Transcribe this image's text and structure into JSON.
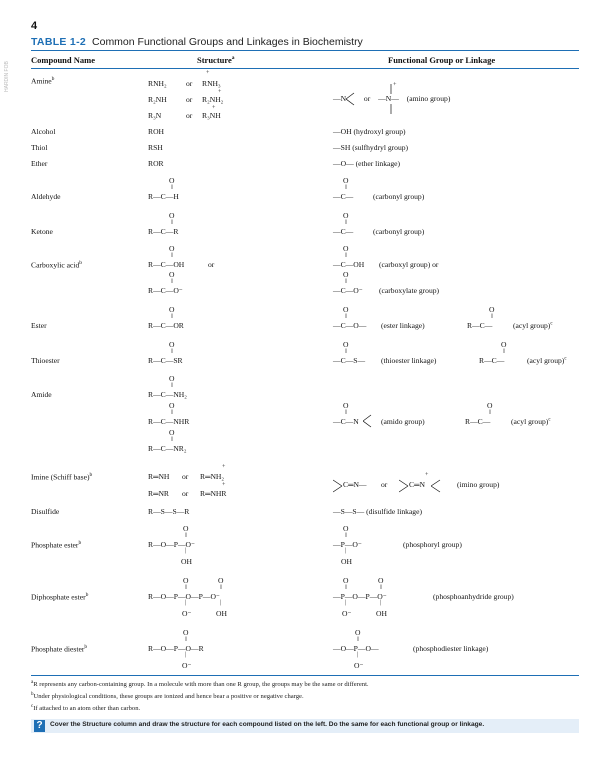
{
  "page_number": "4",
  "side_label": "HARDIN FOB",
  "table": {
    "label": "TABLE 1-2",
    "title": "Common Functional Groups and Linkages in Biochemistry",
    "headers": {
      "compound": "Compound Name",
      "structure": "Structure",
      "structure_sup": "a",
      "functional": "Functional Group or Linkage"
    }
  },
  "rows": {
    "amine": {
      "name": "Amine",
      "sup": "b",
      "s": [
        "RNH₂",
        "or",
        "RNH₃",
        "R₂NH",
        "or",
        "R₂NH₂",
        "R₃N",
        "or",
        "R₃NH",
        "+",
        "+",
        "+"
      ],
      "f": [
        "—N",
        "or",
        "—N—",
        "(amino group)",
        "+"
      ]
    },
    "alcohol": {
      "name": "Alcohol",
      "s": "ROH",
      "f": "—OH  (hydroxyl group)"
    },
    "thiol": {
      "name": "Thiol",
      "s": "RSH",
      "f": "—SH  (sulfhydryl group)"
    },
    "ether": {
      "name": "Ether",
      "s": "ROR",
      "f": "—O—  (ether linkage)"
    },
    "aldehyde": {
      "name": "Aldehyde",
      "s": [
        "O",
        "R—C—H"
      ],
      "f": [
        "O",
        "—C—",
        "(carbonyl group)"
      ]
    },
    "ketone": {
      "name": "Ketone",
      "s": [
        "O",
        "R—C—R"
      ],
      "f": [
        "O",
        "—C—",
        "(carbonyl group)"
      ]
    },
    "carboxylic": {
      "name": "Carboxylic acid",
      "sup": "b",
      "s": [
        "O",
        "R—C—OH",
        "or",
        "O",
        "R—C—O⁻"
      ],
      "f": [
        "O",
        "—C—OH",
        "(carboxyl group) or",
        "O",
        "—C—O⁻",
        "(carboxylate group)"
      ]
    },
    "ester": {
      "name": "Ester",
      "s": [
        "O",
        "R—C—OR"
      ],
      "f": [
        "O",
        "—C—O—",
        "(ester linkage)",
        "O",
        "R—C—",
        "(acyl group)",
        "c"
      ]
    },
    "thioester": {
      "name": "Thioester",
      "s": [
        "O",
        "R—C—SR"
      ],
      "f": [
        "O",
        "—C—S—",
        "(thioester linkage)",
        "O",
        "R—C—",
        "(acyl group)",
        "c"
      ]
    },
    "amide": {
      "name": "Amide",
      "s": [
        "O",
        "R—C—NH₂",
        "O",
        "R—C—NHR",
        "O",
        "R—C—NR₂"
      ],
      "f": [
        "O",
        "—C—N",
        "(amido group)",
        "O",
        "R—C—",
        "(acyl group)",
        "c"
      ]
    },
    "imine": {
      "name": "Imine (Schiff base)",
      "sup": "b",
      "s": [
        "R═NH",
        "or",
        "R═NH₂",
        "R═NR",
        "or",
        "R═NHR",
        "+",
        "+"
      ],
      "f": [
        "C═N—",
        "or",
        "C═N",
        "(imino group)",
        "+"
      ]
    },
    "disulfide": {
      "name": "Disulfide",
      "s": "R—S—S—R",
      "f": "—S—S—  (disulfide linkage)"
    },
    "phosphate_ester": {
      "name": "Phosphate ester",
      "sup": "b",
      "s": [
        "O",
        "R—O—P—O⁻",
        "OH"
      ],
      "f": [
        "O",
        "—P—O⁻",
        "OH",
        "(phosphoryl group)"
      ]
    },
    "diphosphate_ester": {
      "name": "Diphosphate ester",
      "sup": "b",
      "s": [
        "O",
        "O",
        "R—O—P—O—P—O⁻",
        "O⁻",
        "OH"
      ],
      "f": [
        "O",
        "O",
        "—P—O—P—O⁻",
        "O⁻",
        "OH",
        "(phosphoanhydride group)"
      ]
    },
    "phosphate_diester": {
      "name": "Phosphate diester",
      "sup": "b",
      "s": [
        "O",
        "R—O—P—O—R",
        "O⁻"
      ],
      "f": [
        "O",
        "—O—P—O—",
        "O⁻",
        "(phosphodiester linkage)"
      ]
    }
  },
  "footnotes": [
    {
      "mark": "a",
      "text": "R represents any carbon-containing group. In a molecule with more than one R group, the groups may be the same or different."
    },
    {
      "mark": "b",
      "text": "Under physiological conditions, these groups are ionized and hence bear a positive or negative charge."
    },
    {
      "mark": "c",
      "text": "If attached to an atom other than carbon."
    }
  ],
  "question": {
    "icon": "?",
    "text": "Cover the Structure column and draw the structure for each compound listed on the left. Do the same for each functional group or linkage."
  },
  "colors": {
    "accent": "#1e6fb5",
    "question_bg": "#e4eef8"
  }
}
